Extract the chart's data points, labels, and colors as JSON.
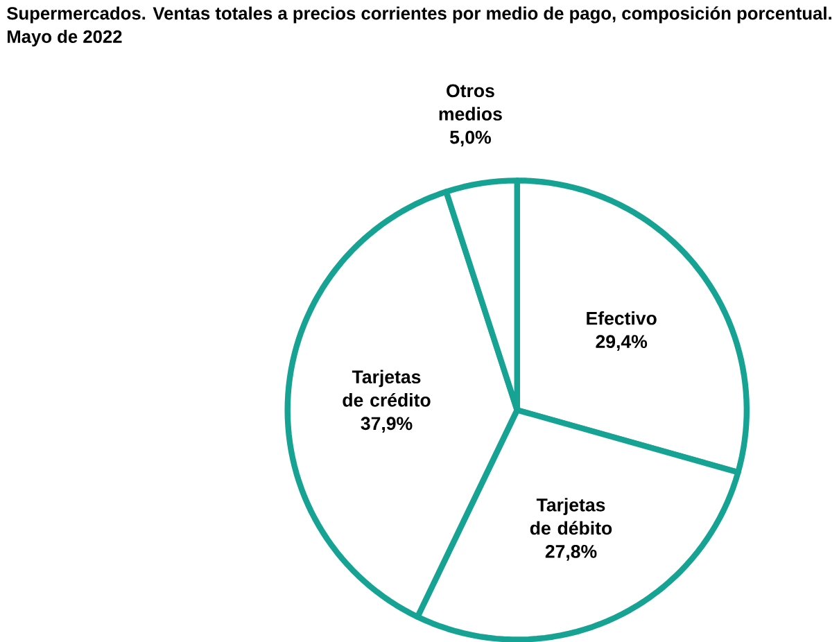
{
  "chart_data": {
    "type": "pie",
    "title": "Supermercados. Ventas totales a precios corrientes por medio de pago, composición porcentual.",
    "subtitle": "Mayo de 2022",
    "categories": [
      "Efectivo",
      "Tarjetas de débito",
      "Tarjetas de crédito",
      "Otros medios"
    ],
    "values": [
      29.4,
      27.8,
      37.9,
      5.0
    ],
    "value_labels": [
      "29,4%",
      "27,8%",
      "37,9%",
      "5,0%"
    ],
    "colors": [
      "#ffffff",
      "#ffffff",
      "#ffffff",
      "#ffffff"
    ],
    "legend": false
  }
}
